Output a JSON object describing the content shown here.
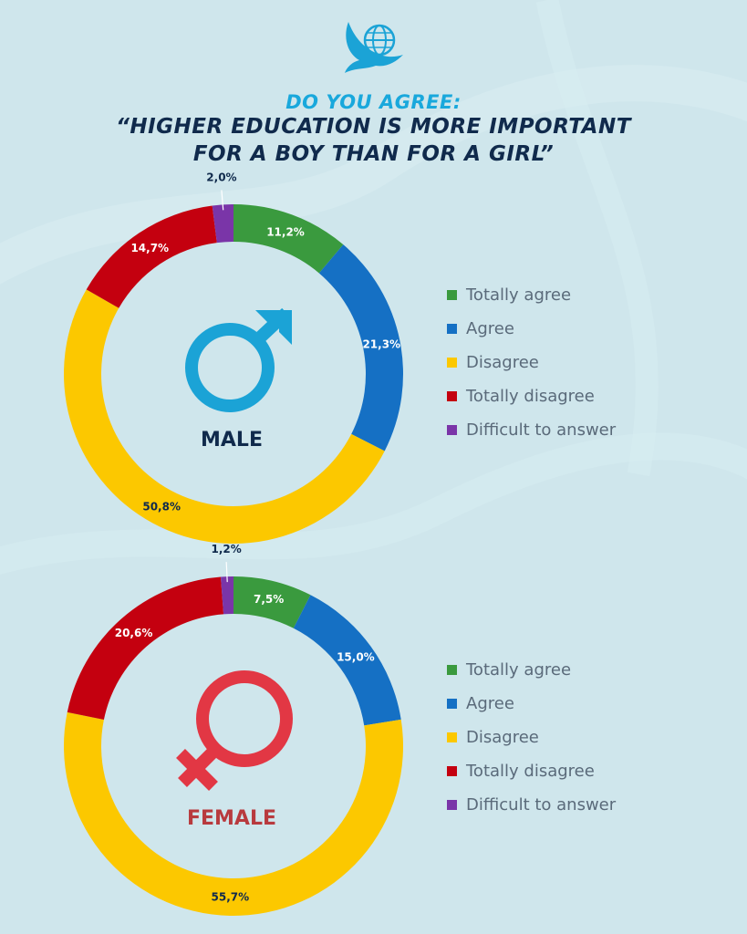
{
  "header": {
    "subtitle": "DO YOU AGREE:",
    "title_line1": "“HIGHER EDUCATION IS MORE IMPORTANT",
    "title_line2": "FOR A BOY THAN FOR A GIRL”"
  },
  "colors": {
    "totally_agree": "#3a9a3e",
    "agree": "#1570c4",
    "disagree": "#fcc800",
    "totally_disagree": "#c4000f",
    "difficult": "#7a35a8",
    "male_symbol": "#1ba3d6",
    "female_symbol": "#e23744",
    "male_text": "#102a4c",
    "female_text": "#b83a3e"
  },
  "legend_male": [
    "Totally agree",
    "Agree",
    "Disagree",
    "Totally disagree",
    "Difficult to answer"
  ],
  "legend_female": [
    "Totally agree",
    "Agree",
    "Disagree",
    "Totally disagree",
    "Difficult to answer"
  ],
  "chart_data": [
    {
      "type": "pie",
      "donut": true,
      "center_label": "MALE",
      "categories": [
        "Totally agree",
        "Agree",
        "Disagree",
        "Totally disagree",
        "Difficult to answer"
      ],
      "values": [
        11.2,
        21.3,
        50.8,
        14.7,
        2.0
      ],
      "labels": [
        "11,2%",
        "21,3%",
        "50,8%",
        "14,7%",
        "2,0%"
      ],
      "legend": "right"
    },
    {
      "type": "pie",
      "donut": true,
      "center_label": "FEMALE",
      "categories": [
        "Totally agree",
        "Agree",
        "Disagree",
        "Totally disagree",
        "Difficult to answer"
      ],
      "values": [
        7.5,
        15.0,
        55.7,
        20.6,
        1.2
      ],
      "labels": [
        "7,5%",
        "15,0%",
        "55,7%",
        "20,6%",
        "1,2%"
      ],
      "legend": "right"
    }
  ]
}
